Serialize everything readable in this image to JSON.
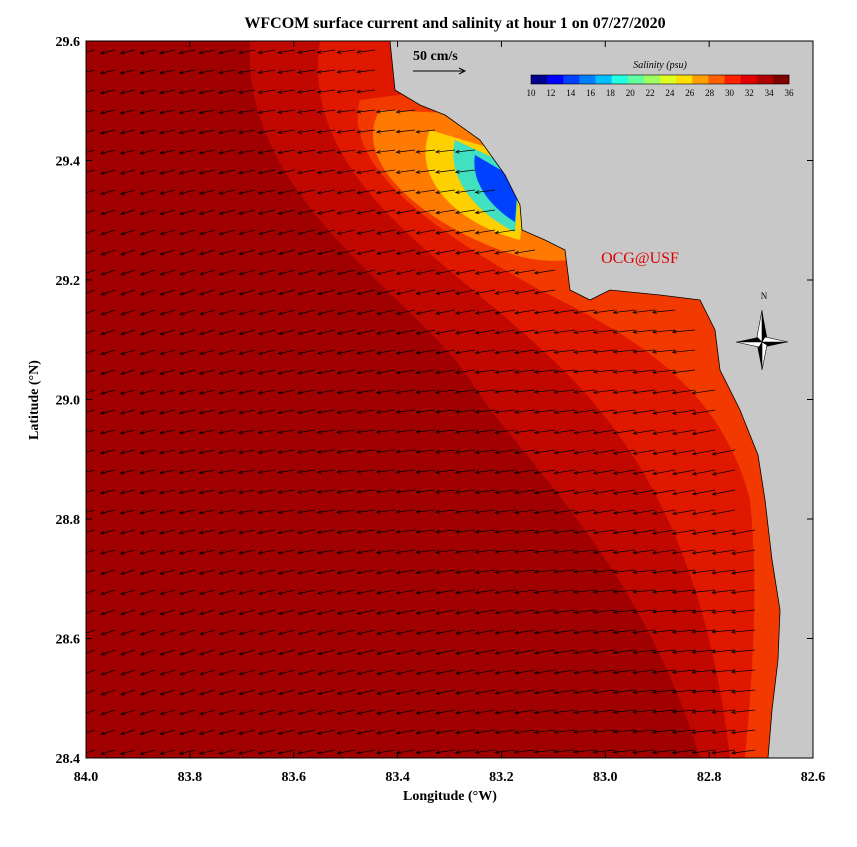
{
  "title": "WFCOM surface current and salinity at hour 1 on 07/27/2020",
  "x_axis": {
    "label": "Longitude (°W)",
    "ticks": [
      "84.0",
      "83.8",
      "83.6",
      "83.4",
      "83.2",
      "83.0",
      "82.8",
      "82.6"
    ]
  },
  "y_axis": {
    "label": "Latitude (°N)",
    "ticks": [
      "29.6",
      "29.4",
      "29.2",
      "29.0",
      "28.8",
      "28.6",
      "28.4"
    ]
  },
  "vector_scale": "50 cm/s",
  "colorbar": {
    "title": "Salinity (psu)",
    "ticks": [
      "10",
      "12",
      "14",
      "16",
      "18",
      "20",
      "22",
      "24",
      "26",
      "28",
      "30",
      "32",
      "34",
      "36"
    ]
  },
  "credit": "OCG@USF",
  "compass": "N"
}
